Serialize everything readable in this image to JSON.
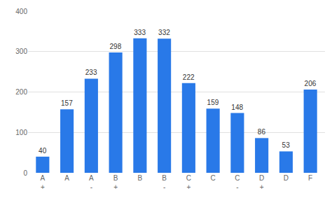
{
  "chart_data": {
    "type": "bar",
    "categories": [
      "A\n+",
      "A",
      "A\n-",
      "B\n+",
      "B",
      "B\n-",
      "C\n+",
      "C",
      "C\n-",
      "D\n+",
      "D",
      "F"
    ],
    "values": [
      40,
      157,
      233,
      298,
      333,
      332,
      222,
      159,
      148,
      86,
      53,
      206
    ],
    "color": "#2979e8",
    "ylim": [
      0,
      400
    ],
    "yticks": [
      0,
      100,
      200,
      300,
      400
    ],
    "grid": true,
    "data_labels": true
  }
}
